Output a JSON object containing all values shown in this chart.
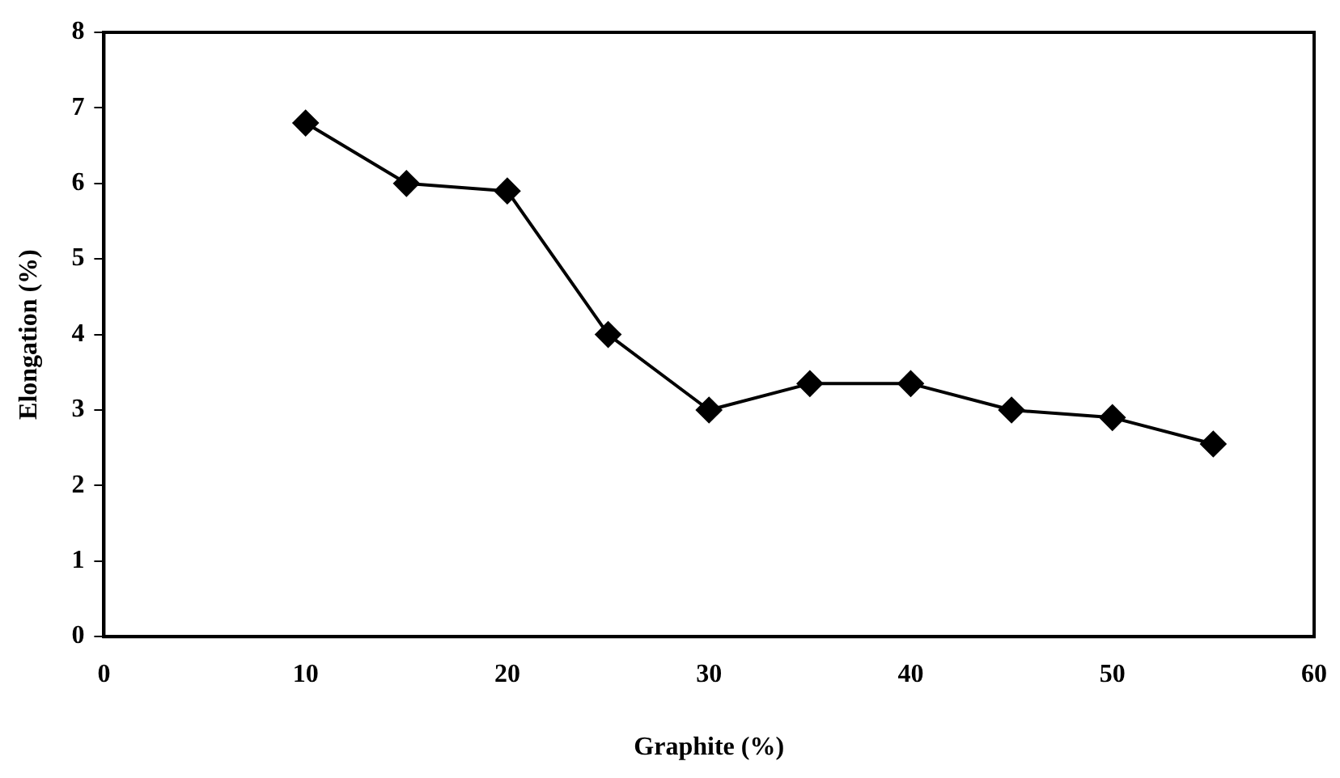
{
  "chart_data": {
    "type": "line",
    "xlabel": "Graphite (%)",
    "ylabel": "Elongation (%)",
    "x": [
      10,
      15,
      20,
      25,
      30,
      35,
      40,
      45,
      50,
      55
    ],
    "series": [
      {
        "color": "#000000",
        "values": [
          6.8,
          6.0,
          5.9,
          4.0,
          3.0,
          3.35,
          3.35,
          3.0,
          2.9,
          2.55
        ]
      }
    ],
    "xlim": [
      0,
      60
    ],
    "xticks": [
      0,
      10,
      20,
      30,
      40,
      50,
      60
    ],
    "ylim": [
      0,
      8
    ],
    "yticks": [
      0,
      1,
      2,
      3,
      4,
      5,
      6,
      7,
      8
    ],
    "grid": false,
    "legend": false,
    "marker": "diamond",
    "line_style": "solid"
  }
}
